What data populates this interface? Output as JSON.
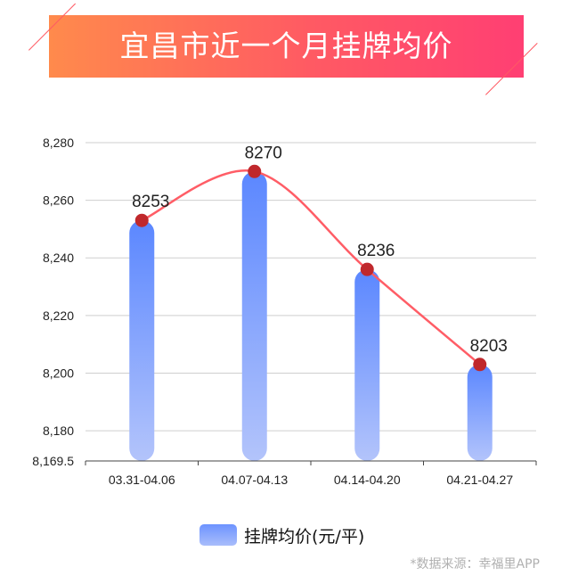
{
  "banner": {
    "title": "宜昌市近一个月挂牌均价"
  },
  "colors": {
    "banner_start": "#ff8a4c",
    "banner_end": "#ff3f73",
    "bar_top": "#5b87ff",
    "bar_bottom": "#b3c4fb",
    "line": "#ff5d66",
    "marker": "#c0282c",
    "grid": "#cfcfcf"
  },
  "chart_data": {
    "type": "bar",
    "categories": [
      "03.31-04.06",
      "04.07-04.13",
      "04.14-04.20",
      "04.21-04.27"
    ],
    "series": [
      {
        "name": "挂牌均价(元/平)",
        "values": [
          8253,
          8270,
          8236,
          8203
        ]
      }
    ],
    "overlay_line": {
      "type": "line",
      "smooth": true,
      "values": [
        8253,
        8270,
        8236,
        8203
      ]
    },
    "data_labels": [
      "8253",
      "8270",
      "8236",
      "8203"
    ],
    "ylim": [
      8169.5,
      8280
    ],
    "yticks": [
      8169.5,
      8180,
      8200,
      8220,
      8240,
      8260,
      8280
    ],
    "ytick_labels": [
      "8,169.5",
      "8,180",
      "8,200",
      "8,220",
      "8,240",
      "8,260",
      "8,280"
    ],
    "grid": true,
    "legend_position": "bottom"
  },
  "legend": {
    "label": "挂牌均价(元/平)"
  },
  "footer": {
    "source": "*数据来源：幸福里APP"
  }
}
